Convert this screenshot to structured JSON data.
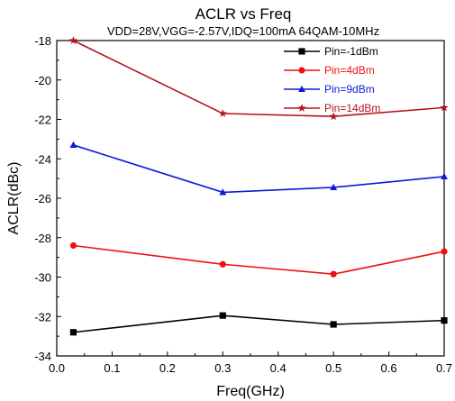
{
  "chart_data": {
    "type": "line",
    "title": "ACLR vs  Freq",
    "subtitle": "VDD=28V,VGG=-2.57V,IDQ=100mA 64QAM-10MHz",
    "xlabel": "Freq(GHz)",
    "ylabel": "ACLR(dBc)",
    "xlim": [
      0.0,
      0.7
    ],
    "ylim": [
      -34,
      -18
    ],
    "xticks": [
      "0.0",
      "0.1",
      "0.2",
      "0.3",
      "0.4",
      "0.5",
      "0.6",
      "0.7"
    ],
    "yticks": [
      "-18",
      "-20",
      "-22",
      "-24",
      "-26",
      "-28",
      "-30",
      "-32",
      "-34"
    ],
    "grid": false,
    "legend_position": "top-right",
    "x": [
      0.03,
      0.3,
      0.5,
      0.7
    ],
    "series": [
      {
        "name": "Pin=-1dBm",
        "color": "#000000",
        "marker": "square",
        "values": [
          -32.8,
          -31.95,
          -32.4,
          -32.2
        ]
      },
      {
        "name": "Pin=4dBm",
        "color": "#ee1111",
        "marker": "circle",
        "values": [
          -28.4,
          -29.35,
          -29.85,
          -28.7
        ]
      },
      {
        "name": "Pin=9dBm",
        "color": "#0b1bd8",
        "marker": "triangle",
        "values": [
          -23.3,
          -25.7,
          -25.45,
          -24.9
        ]
      },
      {
        "name": "Pin=14dBm",
        "color": "#b5131d",
        "marker": "star",
        "values": [
          -18.0,
          -21.7,
          -21.85,
          -21.4
        ]
      }
    ]
  }
}
